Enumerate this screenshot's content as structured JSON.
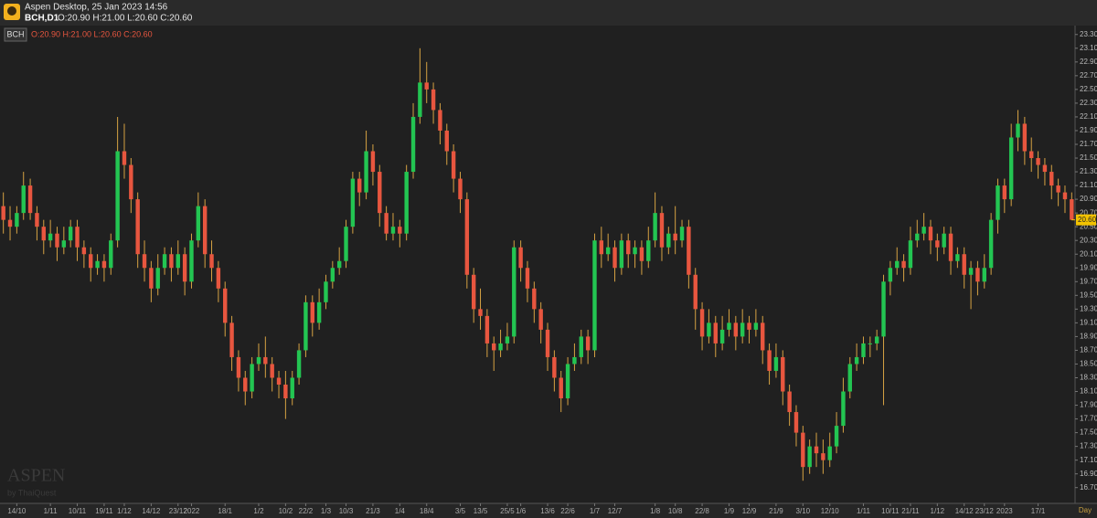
{
  "header": {
    "app": "Aspen Desktop, 25 Jan 2023 14:56",
    "symbol": "BCH,D1",
    "ohlc": "O:20.90 H:21.00 L:20.60 C:20.60"
  },
  "watermark": {
    "brand": "ASPEN",
    "by": "by ThaiQuest"
  },
  "chart_data": {
    "type": "candlestick",
    "name": "BCH",
    "legend_ohlc": "O:20.90 H:21.00 L:20.60 C:20.60",
    "timeframe_label": "Day",
    "last_price": {
      "value": 20.6,
      "label": "20.60"
    },
    "up_color": "#23c552",
    "down_color": "#e8563f",
    "wick_color": "#d6a243",
    "ylim": [
      16.47,
      23.43
    ],
    "yticks": [
      {
        "value": 16.7,
        "label": "16.70"
      },
      {
        "value": 16.9,
        "label": "16.90"
      },
      {
        "value": 17.1,
        "label": "17.10"
      },
      {
        "value": 17.3,
        "label": "17.30"
      },
      {
        "value": 17.5,
        "label": "17.50"
      },
      {
        "value": 17.7,
        "label": "17.70"
      },
      {
        "value": 17.9,
        "label": "17.90"
      },
      {
        "value": 18.1,
        "label": "18.10"
      },
      {
        "value": 18.3,
        "label": "18.30"
      },
      {
        "value": 18.5,
        "label": "18.50"
      },
      {
        "value": 18.7,
        "label": "18.70"
      },
      {
        "value": 18.9,
        "label": "18.90"
      },
      {
        "value": 19.1,
        "label": "19.10"
      },
      {
        "value": 19.3,
        "label": "19.30"
      },
      {
        "value": 19.5,
        "label": "19.50"
      },
      {
        "value": 19.7,
        "label": "19.70"
      },
      {
        "value": 19.9,
        "label": "19.90"
      },
      {
        "value": 20.1,
        "label": "20.10"
      },
      {
        "value": 20.3,
        "label": "20.30"
      },
      {
        "value": 20.5,
        "label": "20.50"
      },
      {
        "value": 20.7,
        "label": "20.70"
      },
      {
        "value": 20.9,
        "label": "20.90"
      },
      {
        "value": 21.1,
        "label": "21.10"
      },
      {
        "value": 21.3,
        "label": "21.30"
      },
      {
        "value": 21.5,
        "label": "21.50"
      },
      {
        "value": 21.7,
        "label": "21.70"
      },
      {
        "value": 21.9,
        "label": "21.90"
      },
      {
        "value": 22.1,
        "label": "22.10"
      },
      {
        "value": 22.3,
        "label": "22.30"
      },
      {
        "value": 22.5,
        "label": "22.50"
      },
      {
        "value": 22.7,
        "label": "22.70"
      },
      {
        "value": 22.9,
        "label": "22.90"
      },
      {
        "value": 23.1,
        "label": "23.10"
      },
      {
        "value": 23.3,
        "label": "23.30"
      }
    ],
    "xticks": [
      {
        "value": 2,
        "label": "14/10"
      },
      {
        "value": 7,
        "label": "1/11"
      },
      {
        "value": 11,
        "label": "10/11"
      },
      {
        "value": 15,
        "label": "19/11"
      },
      {
        "value": 18,
        "label": "1/12"
      },
      {
        "value": 22,
        "label": "14/12"
      },
      {
        "value": 26,
        "label": "23/12"
      },
      {
        "value": 28,
        "label": "2022"
      },
      {
        "value": 33,
        "label": "18/1"
      },
      {
        "value": 38,
        "label": "1/2"
      },
      {
        "value": 42,
        "label": "10/2"
      },
      {
        "value": 45,
        "label": "22/2"
      },
      {
        "value": 48,
        "label": "1/3"
      },
      {
        "value": 51,
        "label": "10/3"
      },
      {
        "value": 55,
        "label": "21/3"
      },
      {
        "value": 59,
        "label": "1/4"
      },
      {
        "value": 63,
        "label": "18/4"
      },
      {
        "value": 68,
        "label": "3/5"
      },
      {
        "value": 71,
        "label": "13/5"
      },
      {
        "value": 75,
        "label": "25/5"
      },
      {
        "value": 77,
        "label": "1/6"
      },
      {
        "value": 81,
        "label": "13/6"
      },
      {
        "value": 84,
        "label": "22/6"
      },
      {
        "value": 88,
        "label": "1/7"
      },
      {
        "value": 91,
        "label": "12/7"
      },
      {
        "value": 97,
        "label": "1/8"
      },
      {
        "value": 100,
        "label": "10/8"
      },
      {
        "value": 104,
        "label": "22/8"
      },
      {
        "value": 108,
        "label": "1/9"
      },
      {
        "value": 111,
        "label": "12/9"
      },
      {
        "value": 115,
        "label": "21/9"
      },
      {
        "value": 119,
        "label": "3/10"
      },
      {
        "value": 123,
        "label": "12/10"
      },
      {
        "value": 128,
        "label": "1/11"
      },
      {
        "value": 132,
        "label": "10/11"
      },
      {
        "value": 135,
        "label": "21/11"
      },
      {
        "value": 139,
        "label": "1/12"
      },
      {
        "value": 143,
        "label": "14/12"
      },
      {
        "value": 146,
        "label": "23/12"
      },
      {
        "value": 149,
        "label": "2023"
      },
      {
        "value": 154,
        "label": "17/1"
      }
    ],
    "open": [
      20.8,
      20.6,
      20.5,
      20.7,
      21.1,
      20.7,
      20.5,
      20.3,
      20.4,
      20.2,
      20.3,
      20.5,
      20.2,
      20.1,
      19.9,
      20.0,
      19.9,
      20.3,
      21.6,
      21.4,
      20.9,
      20.1,
      19.9,
      19.6,
      19.9,
      20.1,
      19.9,
      20.1,
      19.7,
      20.3,
      20.8,
      20.1,
      19.9,
      19.6,
      19.1,
      18.6,
      18.3,
      18.1,
      18.5,
      18.6,
      18.5,
      18.3,
      18.2,
      18.0,
      18.3,
      18.7,
      19.4,
      19.1,
      19.4,
      19.7,
      19.9,
      20.0,
      20.5,
      21.2,
      21.0,
      21.6,
      21.3,
      20.7,
      20.4,
      20.5,
      20.4,
      21.3,
      22.1,
      22.6,
      22.5,
      22.2,
      21.9,
      21.6,
      21.2,
      20.9,
      19.8,
      19.3,
      19.2,
      18.8,
      18.7,
      18.8,
      18.9,
      20.2,
      19.9,
      19.6,
      19.3,
      19.0,
      18.6,
      18.3,
      18.0,
      18.5,
      18.6,
      18.9,
      18.7,
      20.3,
      20.1,
      20.2,
      19.9,
      20.3,
      20.1,
      20.2,
      20.0,
      20.3,
      20.7,
      20.2,
      20.4,
      20.3,
      20.5,
      19.8,
      19.3,
      18.9,
      19.1,
      18.8,
      19.0,
      19.1,
      18.9,
      19.1,
      19.0,
      19.1,
      18.7,
      18.4,
      18.6,
      18.1,
      17.8,
      17.5,
      17.0,
      17.3,
      17.2,
      17.1,
      17.3,
      17.6,
      18.1,
      18.5,
      18.6,
      18.8,
      18.8,
      18.9,
      19.7,
      19.9,
      20.0,
      19.9,
      20.3,
      20.4,
      20.5,
      20.3,
      20.2,
      20.4,
      20.0,
      20.1,
      19.8,
      19.9,
      19.7,
      19.9,
      20.6,
      21.1,
      20.9,
      21.8,
      22.0,
      21.6,
      21.5,
      21.4,
      21.3,
      21.1,
      21.0,
      20.9
    ],
    "high": [
      21.0,
      20.8,
      20.8,
      21.3,
      21.2,
      20.8,
      20.6,
      20.6,
      20.5,
      20.5,
      20.6,
      20.6,
      20.3,
      20.2,
      20.1,
      20.1,
      20.4,
      22.1,
      22.0,
      21.5,
      21.0,
      20.3,
      20.0,
      20.1,
      20.2,
      20.2,
      20.3,
      20.2,
      20.4,
      21.0,
      20.9,
      20.3,
      20.0,
      19.7,
      19.2,
      18.7,
      18.4,
      18.6,
      18.8,
      18.9,
      18.6,
      18.4,
      18.4,
      18.4,
      18.8,
      19.5,
      19.5,
      19.6,
      19.8,
      20.0,
      20.2,
      20.6,
      21.3,
      21.3,
      21.9,
      21.7,
      21.4,
      20.8,
      20.7,
      20.6,
      21.4,
      22.3,
      23.1,
      22.9,
      22.6,
      22.3,
      22.0,
      21.7,
      21.3,
      21.0,
      19.9,
      19.6,
      19.3,
      18.9,
      19.0,
      19.1,
      20.3,
      20.3,
      20.0,
      19.7,
      19.4,
      19.1,
      18.7,
      18.4,
      18.6,
      18.8,
      19.0,
      19.0,
      20.4,
      20.5,
      20.4,
      20.3,
      20.4,
      20.4,
      20.3,
      20.3,
      20.5,
      21.0,
      20.8,
      20.5,
      20.8,
      20.6,
      20.6,
      19.9,
      19.4,
      19.3,
      19.2,
      19.2,
      19.3,
      19.2,
      19.3,
      19.2,
      19.3,
      19.2,
      18.8,
      18.8,
      18.7,
      18.2,
      17.9,
      17.6,
      17.4,
      17.5,
      17.4,
      17.5,
      17.8,
      18.3,
      18.6,
      18.8,
      18.9,
      18.9,
      19.0,
      19.8,
      20.0,
      20.2,
      20.1,
      20.5,
      20.6,
      20.7,
      20.6,
      20.4,
      20.5,
      20.5,
      20.2,
      20.2,
      20.0,
      20.0,
      20.1,
      20.7,
      21.2,
      21.2,
      22.0,
      22.2,
      22.1,
      21.8,
      21.6,
      21.5,
      21.4,
      21.2,
      21.1,
      21.0
    ],
    "low": [
      20.4,
      20.3,
      20.4,
      20.6,
      20.6,
      20.3,
      20.1,
      20.2,
      20.0,
      20.1,
      20.2,
      20.0,
      19.9,
      19.7,
      19.8,
      19.7,
      19.8,
      20.2,
      21.2,
      20.7,
      19.9,
      19.7,
      19.4,
      19.5,
      19.8,
      19.7,
      19.8,
      19.5,
      19.6,
      20.2,
      19.9,
      19.7,
      19.4,
      18.9,
      18.4,
      18.1,
      17.9,
      18.0,
      18.4,
      18.3,
      18.1,
      18.0,
      17.7,
      17.9,
      18.2,
      18.6,
      18.9,
      19.0,
      19.3,
      19.6,
      19.8,
      19.9,
      20.4,
      20.8,
      20.9,
      21.1,
      20.5,
      20.3,
      20.3,
      20.2,
      20.3,
      21.2,
      22.0,
      22.3,
      22.0,
      21.7,
      21.4,
      21.0,
      20.7,
      19.6,
      19.1,
      19.0,
      18.6,
      18.4,
      18.6,
      18.7,
      18.8,
      19.7,
      19.4,
      19.1,
      18.8,
      18.4,
      18.1,
      17.8,
      17.9,
      18.4,
      18.5,
      18.5,
      18.6,
      19.9,
      20.0,
      19.7,
      19.8,
      19.9,
      19.9,
      19.8,
      19.9,
      20.2,
      20.0,
      20.1,
      20.1,
      20.2,
      19.6,
      19.0,
      18.7,
      18.8,
      18.6,
      18.7,
      18.9,
      18.7,
      18.8,
      18.8,
      18.9,
      18.5,
      18.2,
      18.3,
      17.9,
      17.6,
      17.3,
      16.8,
      16.9,
      17.0,
      16.9,
      17.0,
      17.2,
      17.5,
      18.0,
      18.4,
      18.5,
      18.6,
      18.7,
      17.9,
      19.5,
      19.8,
      19.7,
      19.8,
      20.2,
      20.3,
      20.1,
      20.0,
      20.1,
      19.8,
      19.9,
      19.6,
      19.3,
      19.5,
      19.6,
      19.8,
      20.4,
      20.7,
      20.8,
      21.6,
      21.4,
      21.3,
      21.2,
      21.1,
      20.9,
      20.8,
      20.7,
      20.6
    ],
    "close": [
      20.6,
      20.5,
      20.7,
      21.1,
      20.7,
      20.5,
      20.3,
      20.4,
      20.2,
      20.3,
      20.5,
      20.2,
      20.1,
      19.9,
      20.0,
      19.9,
      20.3,
      21.6,
      21.4,
      20.9,
      20.1,
      19.9,
      19.6,
      19.9,
      20.1,
      19.9,
      20.1,
      19.7,
      20.3,
      20.8,
      20.1,
      19.9,
      19.6,
      19.1,
      18.6,
      18.3,
      18.1,
      18.5,
      18.6,
      18.5,
      18.3,
      18.2,
      18.0,
      18.3,
      18.7,
      19.4,
      19.1,
      19.4,
      19.7,
      19.9,
      20.0,
      20.5,
      21.2,
      21.0,
      21.6,
      21.3,
      20.7,
      20.4,
      20.5,
      20.4,
      21.3,
      22.1,
      22.6,
      22.5,
      22.2,
      21.9,
      21.6,
      21.2,
      20.9,
      19.8,
      19.3,
      19.2,
      18.8,
      18.7,
      18.8,
      18.9,
      20.2,
      19.9,
      19.6,
      19.3,
      19.0,
      18.6,
      18.3,
      18.0,
      18.5,
      18.6,
      18.9,
      18.7,
      20.3,
      20.1,
      20.2,
      19.9,
      20.3,
      20.1,
      20.2,
      20.0,
      20.3,
      20.7,
      20.2,
      20.4,
      20.3,
      20.5,
      19.8,
      19.3,
      18.9,
      19.1,
      18.8,
      19.0,
      19.1,
      18.9,
      19.1,
      19.0,
      19.1,
      18.7,
      18.4,
      18.6,
      18.1,
      17.8,
      17.5,
      17.0,
      17.3,
      17.2,
      17.1,
      17.3,
      17.6,
      18.1,
      18.5,
      18.6,
      18.8,
      18.8,
      18.9,
      19.7,
      19.9,
      20.0,
      19.9,
      20.3,
      20.4,
      20.5,
      20.3,
      20.2,
      20.4,
      20.0,
      20.1,
      19.8,
      19.9,
      19.7,
      19.9,
      20.6,
      21.1,
      20.9,
      21.8,
      22.0,
      21.6,
      21.5,
      21.4,
      21.3,
      21.1,
      21.0,
      20.9,
      20.6
    ]
  }
}
